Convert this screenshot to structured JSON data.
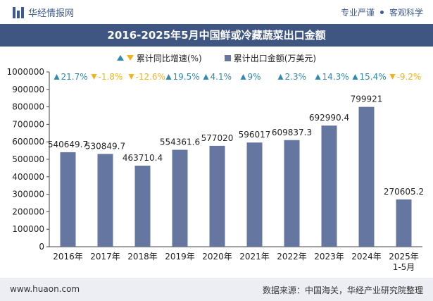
{
  "header": {
    "brand": "华经情报网",
    "links": [
      "专业严谨",
      "客观科学"
    ]
  },
  "footer": {
    "site": "www.huaon.com",
    "source": "数据来源：中国海关，华经产业研究院整理"
  },
  "colors": {
    "bar": "#6577a0",
    "up": "#2f8ab0",
    "down": "#f2b31c",
    "title_bg": "#3f5683"
  },
  "chart_data": {
    "type": "bar",
    "title": "2016-2025年5月中国鲜或冷藏蔬菜出口金额",
    "legend_position": "top",
    "legend": {
      "growth": "累计同比增速(%)",
      "amount": "累计出口金额(万美元)"
    },
    "categories": [
      "2016年",
      "2017年",
      "2018年",
      "2019年",
      "2020年",
      "2021年",
      "2022年",
      "2023年",
      "2024年",
      "2025年\n1-5月"
    ],
    "series": [
      {
        "name": "累计出口金额(万美元)",
        "values": [
          540649.7,
          530849.7,
          463710.4,
          554361.6,
          577020,
          596017,
          609837.3,
          692990.4,
          799921,
          270605.2
        ],
        "labels": [
          "540649.7",
          "530849.7",
          "463710.4",
          "554361.6",
          "577020",
          "596017",
          "609837.3",
          "692990.4",
          "799921",
          "270605.2"
        ]
      },
      {
        "name": "累计同比增速(%)",
        "values": [
          21.7,
          -1.8,
          -12.6,
          19.5,
          4.1,
          9,
          2.3,
          14.3,
          15.4,
          -9.2
        ],
        "labels": [
          "21.7%",
          "-1.8%",
          "-12.6%",
          "19.5%",
          "4.1%",
          "9%",
          "2.3%",
          "14.3%",
          "15.4%",
          "-9.2%"
        ]
      }
    ],
    "ylim": [
      0,
      1000000
    ],
    "yticks": [
      "0",
      "100000",
      "200000",
      "300000",
      "400000",
      "500000",
      "600000",
      "700000",
      "800000",
      "900000",
      "1000000"
    ],
    "grid": false
  }
}
